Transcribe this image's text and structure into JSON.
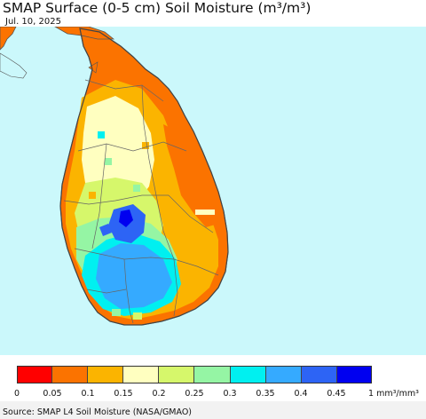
{
  "header": {
    "title": "SMAP Surface (0-5 cm) Soil Moisture (m³/m³)",
    "date": "Jul. 10, 2025"
  },
  "map": {
    "ocean_color": "#cbf8fb",
    "land_outline_color": "#555555",
    "region": "Sri Lanka"
  },
  "legend": {
    "colors": [
      "#ff0000",
      "#fb7300",
      "#fbb400",
      "#ffffc0",
      "#d6f76b",
      "#95f5a4",
      "#00f0f0",
      "#35aaff",
      "#2d64f5",
      "#0000f0"
    ],
    "ticks": [
      "0",
      "0.05",
      "0.1",
      "0.15",
      "0.2",
      "0.25",
      "0.3",
      "0.35",
      "0.4",
      "0.45",
      "1"
    ],
    "unit": "mm³/mm³"
  },
  "footer": {
    "source": "Source: SMAP L4 Soil Moisture (NASA/GMAO)"
  }
}
